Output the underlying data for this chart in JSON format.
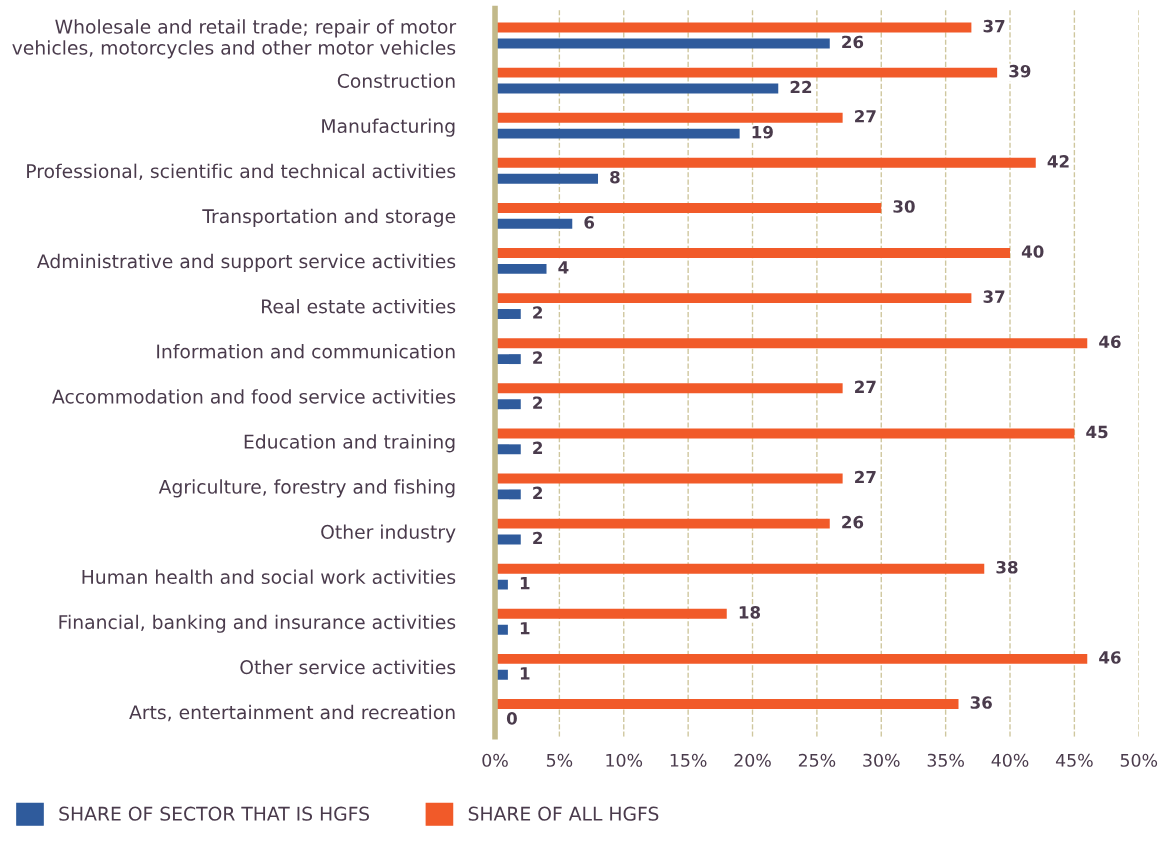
{
  "chart_data": {
    "type": "bar",
    "orientation": "horizontal",
    "categories": [
      "Wholesale and retail trade; repair of motor vehicles, motorcycles and other motor vehicles",
      "Construction",
      "Manufacturing",
      "Professional, scientific and technical activities",
      "Transportation and storage",
      "Administrative and support service activities",
      "Real estate activities",
      "Information and communication",
      "Accommodation and food service activities",
      "Education and training",
      "Agriculture, forestry and fishing",
      "Other industry",
      "Human health and social work activities",
      "Financial, banking and insurance activities",
      "Other service activities",
      "Arts, entertainment and recreation"
    ],
    "series": [
      {
        "name": "SHARE OF SECTOR THAT IS HGFS",
        "color": "#2f5b9c",
        "values": [
          26,
          22,
          19,
          8,
          6,
          4,
          2,
          2,
          2,
          2,
          2,
          2,
          1,
          1,
          1,
          0
        ]
      },
      {
        "name": "SHARE OF ALL HGFS",
        "color": "#f15a29",
        "values": [
          37,
          39,
          27,
          42,
          30,
          40,
          37,
          46,
          27,
          45,
          27,
          26,
          38,
          18,
          46,
          36
        ]
      }
    ],
    "xlim": [
      0,
      50
    ],
    "xticks": [
      {
        "value": 0,
        "label": "0%"
      },
      {
        "value": 5,
        "label": "5%"
      },
      {
        "value": 10,
        "label": "10%"
      },
      {
        "value": 15,
        "label": "15%"
      },
      {
        "value": 20,
        "label": "20%"
      },
      {
        "value": 25,
        "label": "25%"
      },
      {
        "value": 30,
        "label": "30%"
      },
      {
        "value": 35,
        "label": "35%"
      },
      {
        "value": 40,
        "label": "40%"
      },
      {
        "value": 45,
        "label": "45%"
      },
      {
        "value": 50,
        "label": "50%"
      }
    ],
    "grid": "x",
    "legend": "bottom left",
    "data_labels": true
  }
}
